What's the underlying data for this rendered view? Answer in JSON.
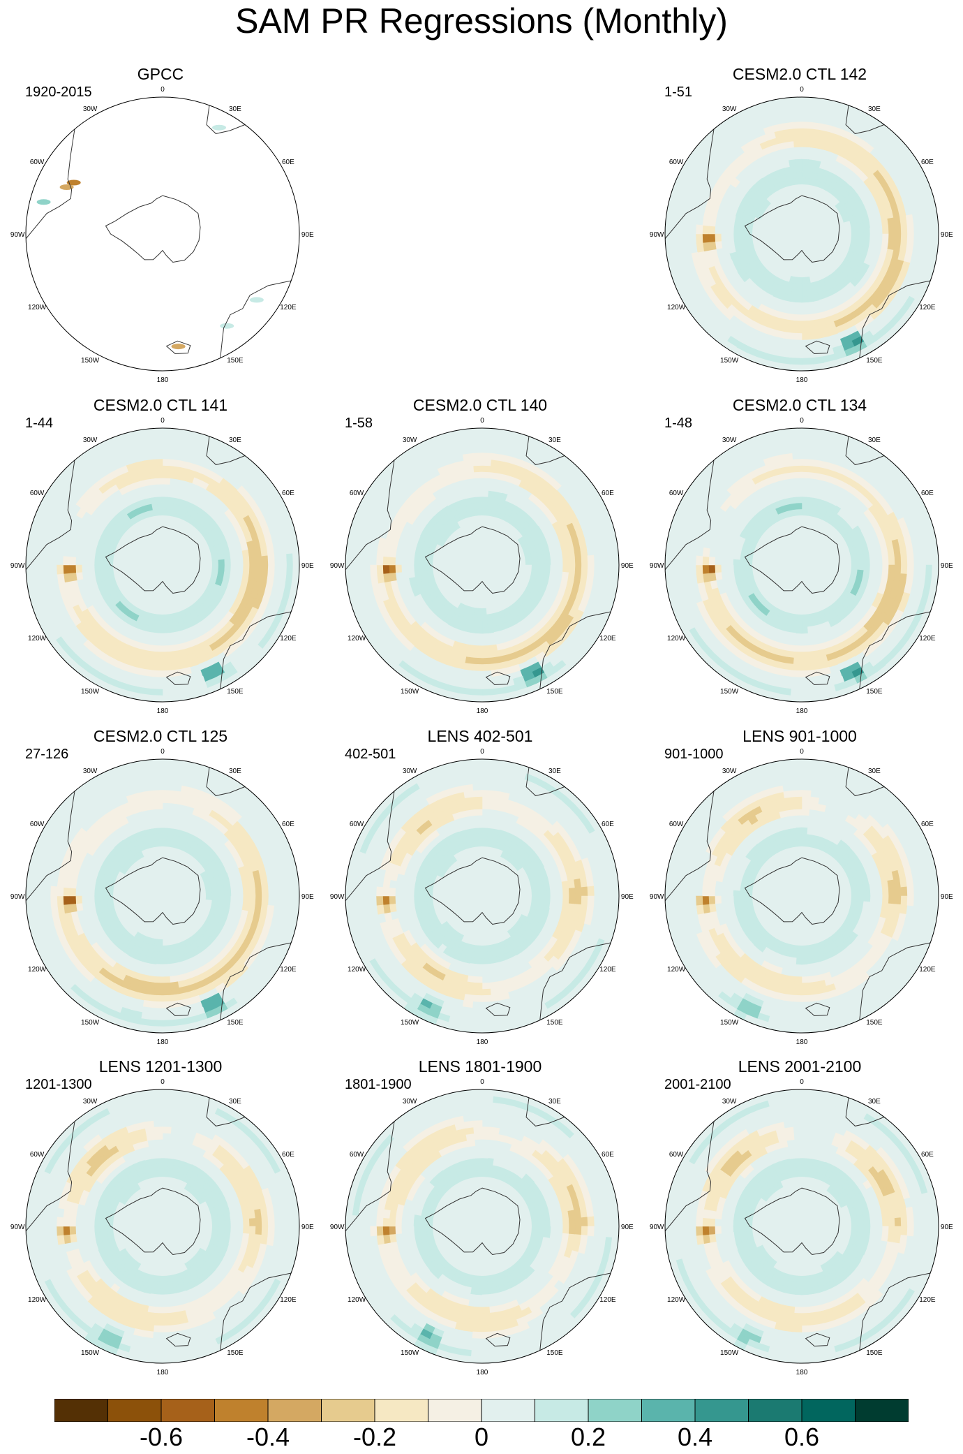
{
  "title": "SAM PR Regressions (Monthly)",
  "panels": [
    {
      "id": "gpcc",
      "title": "GPCC",
      "range": "1920-2015",
      "row": 0,
      "col": 0,
      "field": "none"
    },
    {
      "id": "ctl142",
      "title": "CESM2.0 CTL 142",
      "range": "1-51",
      "row": 0,
      "col": 2,
      "field": "ctl"
    },
    {
      "id": "ctl141",
      "title": "CESM2.0 CTL 141",
      "range": "1-44",
      "row": 1,
      "col": 0,
      "field": "ctl"
    },
    {
      "id": "ctl140",
      "title": "CESM2.0 CTL 140",
      "range": "1-58",
      "row": 1,
      "col": 1,
      "field": "ctl"
    },
    {
      "id": "ctl134",
      "title": "CESM2.0 CTL 134",
      "range": "1-48",
      "row": 1,
      "col": 2,
      "field": "ctl"
    },
    {
      "id": "ctl125",
      "title": "CESM2.0 CTL 125",
      "range": "27-126",
      "row": 2,
      "col": 0,
      "field": "ctl"
    },
    {
      "id": "lens402",
      "title": "LENS 402-501",
      "range": "402-501",
      "row": 2,
      "col": 1,
      "field": "lens"
    },
    {
      "id": "lens901",
      "title": "LENS 901-1000",
      "range": "901-1000",
      "row": 2,
      "col": 2,
      "field": "lens"
    },
    {
      "id": "lens1201",
      "title": "LENS 1201-1300",
      "range": "1201-1300",
      "row": 3,
      "col": 0,
      "field": "lens"
    },
    {
      "id": "lens1801",
      "title": "LENS 1801-1900",
      "range": "1801-1900",
      "row": 3,
      "col": 1,
      "field": "lens"
    },
    {
      "id": "lens2001",
      "title": "LENS 2001-2100",
      "range": "2001-2100",
      "row": 3,
      "col": 2,
      "field": "lens"
    }
  ],
  "longitude_labels": [
    "0",
    "30E",
    "60E",
    "90E",
    "120E",
    "150E",
    "180",
    "150W",
    "120W",
    "90W",
    "60W",
    "30W"
  ],
  "colorbar": {
    "colors": [
      "#543005",
      "#8c510a",
      "#a6611a",
      "#bf812d",
      "#d4a862",
      "#e6cb8e",
      "#f6e8c3",
      "#f5f0e4",
      "#e2f0ee",
      "#c7eae5",
      "#8fd3c8",
      "#5ab4ac",
      "#35978f",
      "#1b7a71",
      "#01665e",
      "#003c30"
    ],
    "ticks": [
      "-0.6",
      "-0.4",
      "-0.2",
      "0",
      "0.2",
      "0.4",
      "0.6"
    ],
    "tick_values": [
      -0.6,
      -0.4,
      -0.2,
      0,
      0.2,
      0.4,
      0.6
    ],
    "min": -0.8,
    "max": 0.8
  }
}
